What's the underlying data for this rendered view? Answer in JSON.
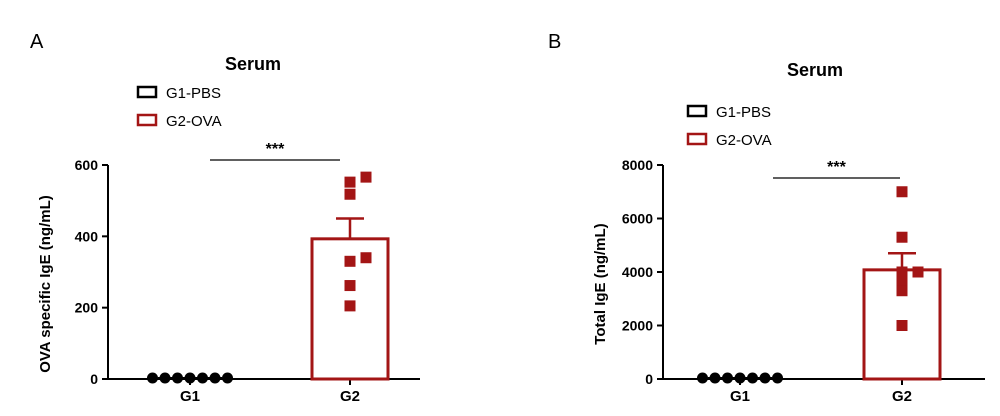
{
  "colors": {
    "g1": "#000000",
    "g2": "#a31515"
  },
  "chart_data": [
    {
      "panel": "A",
      "type": "bar",
      "title": "Serum",
      "ylabel": "OVA  specific IgE (ng/mL)",
      "xlabel": "",
      "categories": [
        "G1",
        "G2"
      ],
      "legend": [
        "G1-PBS",
        "G2-OVA"
      ],
      "legend_placement": "top-left",
      "ylim": [
        0,
        600
      ],
      "yticks": [
        "0",
        "200",
        "400",
        "600"
      ],
      "values": [
        0,
        393
      ],
      "errors": [
        0,
        57
      ],
      "points": [
        [
          0,
          0,
          0,
          0,
          0,
          0,
          0
        ],
        [
          205,
          262,
          330,
          340,
          518,
          552,
          566
        ]
      ],
      "significance": "***",
      "grid": false
    },
    {
      "panel": "B",
      "type": "bar",
      "title": "Serum",
      "ylabel": "Total  IgE (ng/mL)",
      "xlabel": "",
      "categories": [
        "G1",
        "G2"
      ],
      "legend": [
        "G1-PBS",
        "G2-OVA"
      ],
      "legend_placement": "top-left",
      "ylim": [
        0,
        8000
      ],
      "yticks": [
        "0",
        "2000",
        "4000",
        "6000",
        "8000"
      ],
      "values": [
        0,
        4080
      ],
      "errors": [
        0,
        620
      ],
      "points": [
        [
          0,
          0,
          0,
          0,
          0,
          0,
          0
        ],
        [
          2000,
          3300,
          3700,
          4000,
          4000,
          5300,
          7000
        ]
      ],
      "significance": "***",
      "grid": false
    }
  ]
}
